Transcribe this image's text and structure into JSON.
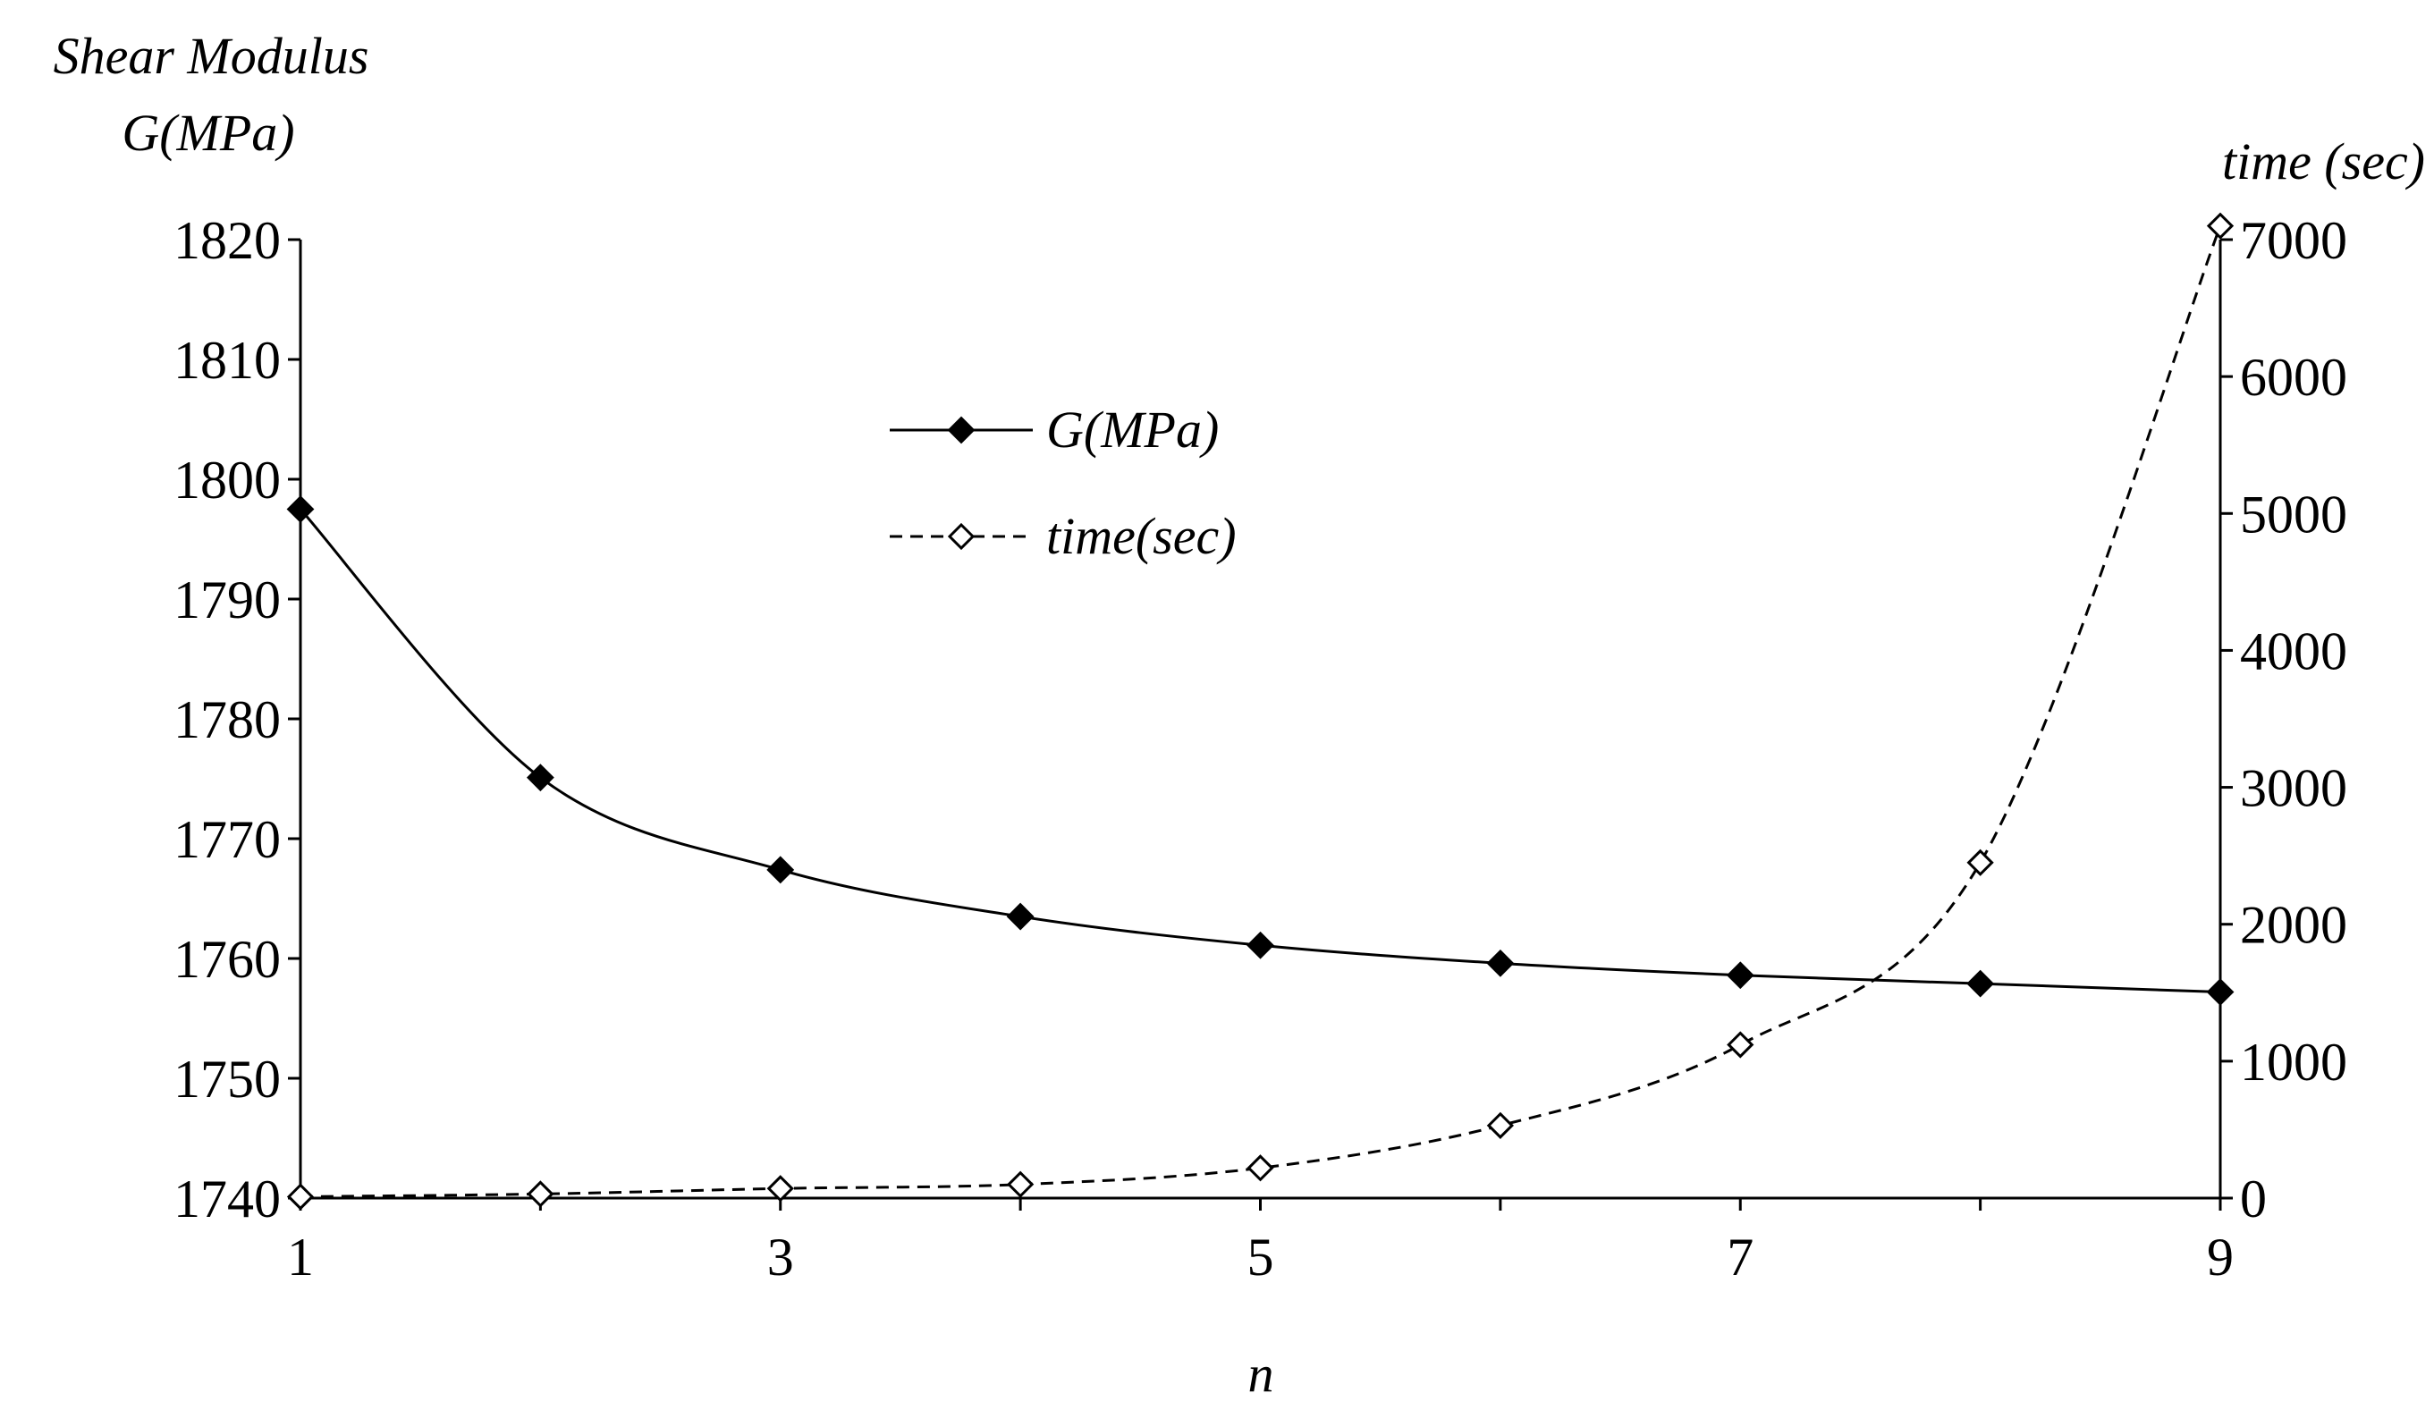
{
  "chart_data": {
    "type": "line",
    "x_label": "n",
    "y_left_label_line1": "Shear Modulus",
    "y_left_label_line2": "G(MPa)",
    "y_right_label": "time (sec)",
    "x": [
      1,
      2,
      3,
      4,
      5,
      6,
      7,
      8,
      9
    ],
    "x_ticks": [
      "1",
      "3",
      "5",
      "7",
      "9"
    ],
    "x_range": [
      1,
      9
    ],
    "y_left_range": [
      1740,
      1820
    ],
    "y_left_ticks": [
      "1740",
      "1750",
      "1760",
      "1770",
      "1780",
      "1790",
      "1800",
      "1810",
      "1820"
    ],
    "y_right_range": [
      0,
      7000
    ],
    "y_right_ticks": [
      "0",
      "1000",
      "2000",
      "3000",
      "4000",
      "5000",
      "6000",
      "7000"
    ],
    "grid": false,
    "legend_position": "upper-center",
    "series": [
      {
        "name": "G(MPa)",
        "axis": "left",
        "style": "solid",
        "marker": "filled-diamond",
        "values": [
          1797.5,
          1775.1,
          1767.4,
          1763.5,
          1761.1,
          1759.6,
          1758.6,
          1757.9,
          1757.2
        ]
      },
      {
        "name": "time(sec)",
        "axis": "right",
        "style": "dashed",
        "marker": "open-diamond",
        "values": [
          10,
          30,
          70,
          100,
          220,
          530,
          1120,
          2450,
          7100
        ]
      }
    ]
  }
}
